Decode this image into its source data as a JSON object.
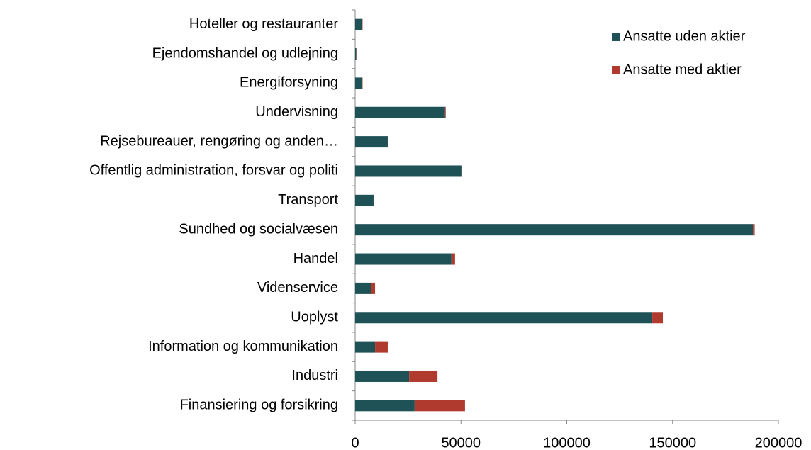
{
  "chart_data": {
    "type": "stacked_barh",
    "categories": [
      "Hoteller og restauranter",
      "Ejendomshandel og udlejning",
      "Energiforsyning",
      "Undervisning",
      "Rejsebureauer, rengøring og anden…",
      "Offentlig administration, forsvar og politi",
      "Transport",
      "Sundhed og socialvæsen",
      "Handel",
      "Videnservice",
      "Uoplyst",
      "Information og kommunikation",
      "Industri",
      "Finansiering og forsikring"
    ],
    "series": [
      {
        "name": "Ansatte uden aktier",
        "color": "#1f5257",
        "values": [
          3300,
          500,
          3300,
          42500,
          15400,
          50200,
          8700,
          188000,
          45500,
          7400,
          140400,
          9400,
          25500,
          28100
        ]
      },
      {
        "name": "Ansatte med aktier",
        "color": "#b03a2e",
        "values": [
          200,
          100,
          200,
          300,
          300,
          300,
          300,
          800,
          1700,
          2000,
          5000,
          6000,
          13400,
          23800
        ]
      }
    ],
    "xlim": [
      0,
      200000
    ],
    "xticks": [
      0,
      50000,
      100000,
      150000,
      200000
    ],
    "legend": "upper right"
  }
}
